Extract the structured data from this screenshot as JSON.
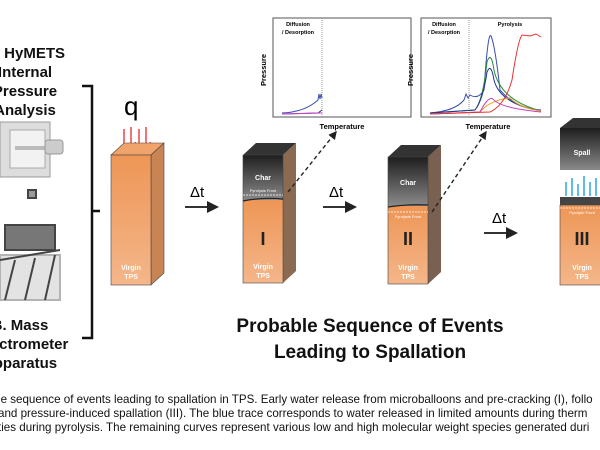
{
  "left_panel": {
    "a_label": [
      "A. HyMETS",
      "Internal",
      "Pressure",
      "Analysis"
    ],
    "b_label": [
      "B. Mass",
      "Spectrometer",
      "Apparatus"
    ]
  },
  "heat_flux_symbol": "q",
  "time_step": "Δt",
  "blocks": [
    {
      "stage": "",
      "virgin": "Virgin",
      "tps": "TPS"
    },
    {
      "stage": "I",
      "char": "Char",
      "front": "Pyrolysis Front",
      "virgin": "Virgin",
      "tps": "TPS"
    },
    {
      "stage": "II",
      "char": "Char",
      "front": "Pyrolysis Front",
      "virgin": "Virgin",
      "tps": "TPS"
    },
    {
      "stage": "III",
      "spall": "Spall",
      "front": "Pyrolytic Front",
      "virgin": "Virgin",
      "tps": "TPS"
    }
  ],
  "graphs": [
    {
      "ylabel": "Pressure",
      "xlabel": "Temperature",
      "region1": "Diffusion",
      "region1b": "/ Desorption"
    },
    {
      "ylabel": "Pressure",
      "xlabel": "Temperature",
      "region1": "Diffusion",
      "region1b": "/ Desorption",
      "region2": "Pyrolysis"
    }
  ],
  "title": [
    "Probable Sequence of Events",
    "Leading to Spallation"
  ],
  "caption": [
    "le sequence of events leading to spallation in TPS. Early water release from microballoons and pre-cracking (I), follo",
    " and pressure-induced spallation (III). The blue trace corresponds to water released in limited amounts during therm",
    "ties during pyrolysis. The remaining curves represent various low and high molecular weight species generated duri"
  ],
  "colors": {
    "virgin": "#ee9a5c",
    "char": "#2a2a2a",
    "water": "#3b4fb0",
    "flux": "#e8282d",
    "gas": "#2aa5e8"
  }
}
